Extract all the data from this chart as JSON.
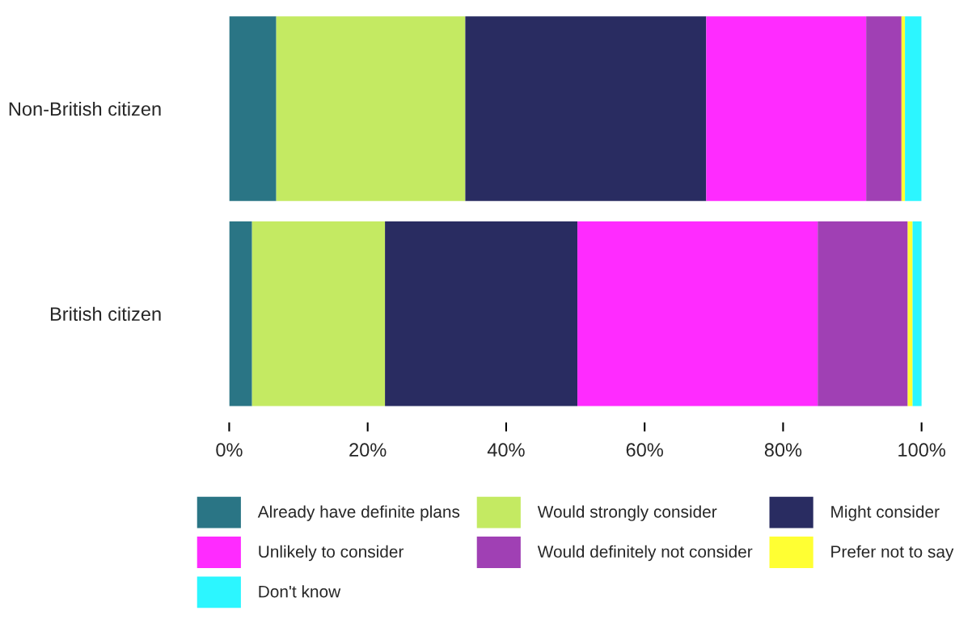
{
  "chart_data": {
    "type": "bar",
    "orientation": "horizontal",
    "stacked": true,
    "categories": [
      "Non-British citizen",
      "British citizen"
    ],
    "series": [
      {
        "name": "Already have definite plans",
        "color": "#2a7585",
        "values": [
          6.8,
          3.3
        ]
      },
      {
        "name": "Would strongly consider",
        "color": "#c4ea62",
        "values": [
          27.3,
          19.2
        ]
      },
      {
        "name": "Might consider",
        "color": "#292c61",
        "values": [
          34.8,
          27.8
        ]
      },
      {
        "name": "Unlikely to consider",
        "color": "#ff2bff",
        "values": [
          23.1,
          34.7
        ]
      },
      {
        "name": "Would definitely not consider",
        "color": "#a040b4",
        "values": [
          5.1,
          13.0
        ]
      },
      {
        "name": "Prefer not to say",
        "color": "#ffff33",
        "values": [
          0.5,
          0.7
        ]
      },
      {
        "name": "Don't know",
        "color": "#2cf6ff",
        "values": [
          2.4,
          1.4
        ]
      }
    ],
    "xlim": [
      0,
      100
    ],
    "xticks": [
      {
        "value": 0,
        "label": "0%"
      },
      {
        "value": 20,
        "label": "20%"
      },
      {
        "value": 40,
        "label": "40%"
      },
      {
        "value": 60,
        "label": "60%"
      },
      {
        "value": 80,
        "label": "80%"
      },
      {
        "value": 100,
        "label": "100%"
      }
    ],
    "grid": false,
    "legend": "bottom"
  }
}
